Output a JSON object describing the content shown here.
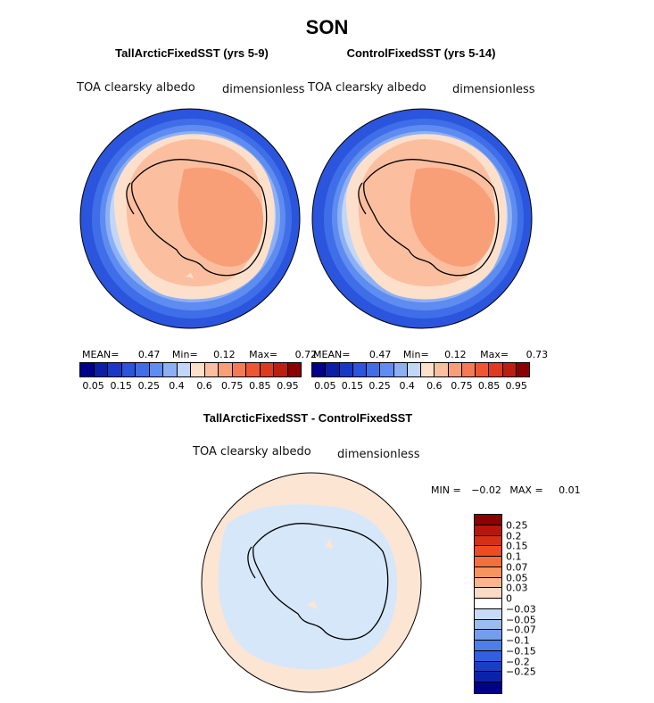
{
  "figure": {
    "season": "SON",
    "panels": [
      {
        "id": "tall",
        "title": "TallArcticFixedSST (yrs 5-9)",
        "variable": "TOA clearsky albedo",
        "units": "dimensionless",
        "stats": {
          "mean_label": "MEAN=",
          "mean": "0.47",
          "min_label": "Min=",
          "min": "0.12",
          "max_label": "Max=",
          "max": "0.72"
        }
      },
      {
        "id": "control",
        "title": "ControlFixedSST (yrs 5-14)",
        "variable": "TOA clearsky albedo",
        "units": "dimensionless",
        "stats": {
          "mean_label": "MEAN=",
          "mean": "0.47",
          "min_label": "Min=",
          "min": "0.12",
          "max_label": "Max=",
          "max": "0.73"
        }
      }
    ],
    "diff": {
      "title": "TallArcticFixedSST - ControlFixedSST",
      "variable": "TOA clearsky albedo",
      "units": "dimensionless",
      "stats": {
        "min_label": "MIN =",
        "min": "−0.02",
        "max_label": "MAX =",
        "max": "0.01"
      }
    },
    "colorbar_main": {
      "colors": [
        "#00008b",
        "#0b1ea5",
        "#1838c6",
        "#2a55dc",
        "#3f6ee8",
        "#5e8cf0",
        "#8db0f5",
        "#c2d6f7",
        "#fde0cc",
        "#fbbfa0",
        "#f89f78",
        "#f47a55",
        "#ee5533",
        "#dd3a1f",
        "#bb1f10",
        "#8b0000"
      ],
      "tick_labels": [
        "0.05",
        "0.15",
        "0.25",
        "0.4",
        "0.6",
        "0.75",
        "0.85",
        "0.95"
      ]
    },
    "colorbar_diff": {
      "colors": [
        "#8b0000",
        "#b3170a",
        "#d52f15",
        "#ed4b22",
        "#f46f3e",
        "#f7935f",
        "#f9b690",
        "#fbdac6",
        "#ffffff",
        "#c8dbf6",
        "#9bbcf3",
        "#739ded",
        "#4f7ee6",
        "#3060dc",
        "#1a3fc7",
        "#0b23a9",
        "#00008b"
      ],
      "tick_labels": [
        "0.25",
        "0.2",
        "0.15",
        "0.1",
        "0.07",
        "0.05",
        "0.03",
        "0",
        "−0.03",
        "−0.05",
        "−0.07",
        "−0.1",
        "−0.15",
        "−0.2",
        "−0.25"
      ]
    }
  }
}
